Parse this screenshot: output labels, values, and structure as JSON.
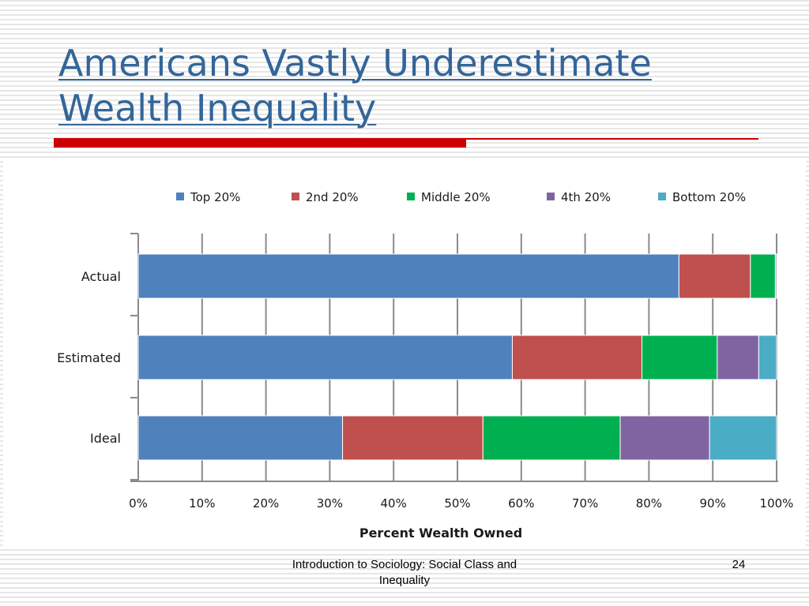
{
  "slide": {
    "title": "Americans Vastly Underestimate Wealth Inequality",
    "footer_text": "Introduction to Sociology: Social Class and Inequality",
    "slide_number": "24",
    "colors": {
      "title": "#336699",
      "rule": "#cc0000"
    }
  },
  "chart_data": {
    "type": "bar",
    "orientation": "horizontal",
    "stacked": true,
    "categories": [
      "Actual",
      "Estimated",
      "Ideal"
    ],
    "series": [
      {
        "name": "Top 20%",
        "color": "#4f81bd",
        "values": [
          84.7,
          58.6,
          32
        ]
      },
      {
        "name": "2nd 20%",
        "color": "#c0504d",
        "values": [
          11.2,
          20.3,
          22
        ]
      },
      {
        "name": "Middle 20%",
        "color": "#00b050",
        "values": [
          3.9,
          11.8,
          21.5
        ]
      },
      {
        "name": "4th 20%",
        "color": "#8064a2",
        "values": [
          0.2,
          6.5,
          14
        ]
      },
      {
        "name": "Bottom 20%",
        "color": "#4bacc6",
        "values": [
          0.1,
          2.8,
          10.5
        ]
      }
    ],
    "xlabel": "Percent Wealth Owned",
    "ylabel": "",
    "xlim": [
      0,
      100
    ],
    "x_ticks": [
      "0%",
      "10%",
      "20%",
      "30%",
      "40%",
      "50%",
      "60%",
      "70%",
      "80%",
      "90%",
      "100%"
    ],
    "grid": "vertical",
    "legend_position": "top"
  }
}
